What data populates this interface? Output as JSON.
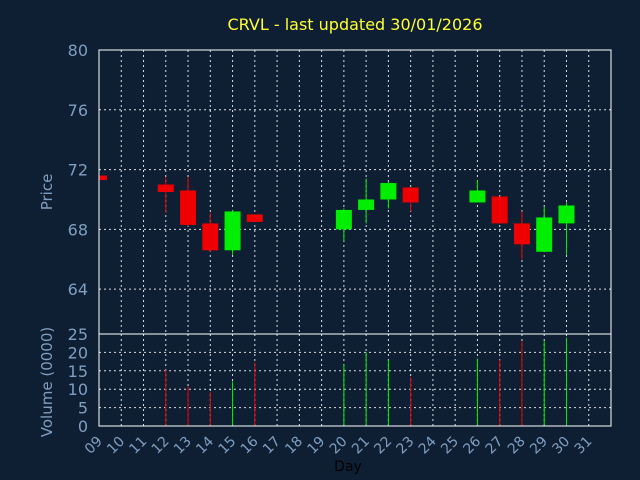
{
  "chart_data": {
    "type": "candlestick",
    "title": "CRVL - last updated 30/01/2026",
    "xlabel": "Day",
    "price_axis": {
      "label": "Price",
      "ylim": [
        61,
        80
      ],
      "ticks": [
        "80",
        "76",
        "72",
        "68",
        "64"
      ],
      "tick_values": [
        80,
        76,
        72,
        68,
        64
      ]
    },
    "volume_axis": {
      "label": "Volume (0000)",
      "ylim": [
        0,
        25
      ],
      "ticks": [
        "25",
        "20",
        "15",
        "10",
        "5",
        "0"
      ],
      "tick_values": [
        25,
        20,
        15,
        10,
        5,
        0
      ]
    },
    "x_ticks": [
      "09",
      "10",
      "11",
      "12",
      "13",
      "14",
      "15",
      "16",
      "17",
      "18",
      "19",
      "20",
      "21",
      "22",
      "23",
      "24",
      "25",
      "26",
      "27",
      "28",
      "29",
      "30",
      "31"
    ],
    "grid": true,
    "colors": {
      "up": "#00ee00",
      "down": "#ee0000",
      "background": "#0f1f33",
      "title": "#ffff33",
      "axis_text": "#7f9fc0"
    },
    "candles": [
      {
        "day": "09",
        "open": 71.6,
        "high": 71.6,
        "low": 71.3,
        "close": 71.3,
        "volume": null
      },
      {
        "day": "12",
        "open": 71.0,
        "high": 71.5,
        "low": 69.1,
        "close": 70.5,
        "volume": 15.3
      },
      {
        "day": "13",
        "open": 70.6,
        "high": 71.5,
        "low": 68.2,
        "close": 68.3,
        "volume": 10.8
      },
      {
        "day": "14",
        "open": 68.4,
        "high": 69.1,
        "low": 66.5,
        "close": 66.6,
        "volume": 9.2
      },
      {
        "day": "15",
        "open": 66.6,
        "high": 69.3,
        "low": 66.3,
        "close": 69.2,
        "volume": 12.1
      },
      {
        "day": "16",
        "open": 69.0,
        "high": 69.0,
        "low": 68.5,
        "close": 68.5,
        "volume": 17.3
      },
      {
        "day": "20",
        "open": 68.0,
        "high": 69.4,
        "low": 67.2,
        "close": 69.3,
        "volume": 16.7
      },
      {
        "day": "21",
        "open": 69.3,
        "high": 71.4,
        "low": 68.4,
        "close": 70.0,
        "volume": 20.0
      },
      {
        "day": "22",
        "open": 70.0,
        "high": 71.2,
        "low": 69.4,
        "close": 71.1,
        "volume": 18.0
      },
      {
        "day": "23",
        "open": 70.8,
        "high": 70.8,
        "low": 69.2,
        "close": 69.8,
        "volume": 13.3
      },
      {
        "day": "26",
        "open": 69.8,
        "high": 71.3,
        "low": 69.8,
        "close": 70.6,
        "volume": 18.3
      },
      {
        "day": "27",
        "open": 70.2,
        "high": 70.2,
        "low": 68.4,
        "close": 68.4,
        "volume": 18.0
      },
      {
        "day": "28",
        "open": 68.4,
        "high": 69.2,
        "low": 66.0,
        "close": 67.0,
        "volume": 23.0
      },
      {
        "day": "29",
        "open": 66.5,
        "high": 69.5,
        "low": 66.5,
        "close": 68.8,
        "volume": 23.0
      },
      {
        "day": "30",
        "open": 68.4,
        "high": 69.8,
        "low": 66.3,
        "close": 69.6,
        "volume": 24.0
      }
    ]
  }
}
